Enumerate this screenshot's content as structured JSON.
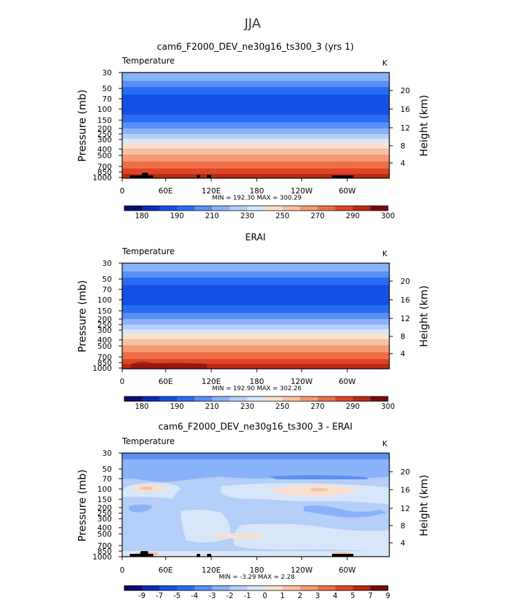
{
  "page": {
    "title": "JJA"
  },
  "shared": {
    "variable": "Temperature",
    "units": "K",
    "left_axis_label": "Pressure (mb)",
    "right_axis_label": "Height (km)",
    "pressure_ticks": [
      "30",
      "50",
      "70",
      "100",
      "150",
      "200",
      "250",
      "300",
      "400",
      "500",
      "700",
      "850",
      "1000"
    ],
    "height_ticks": [
      "20",
      "16",
      "12",
      "8",
      "4"
    ],
    "lon_ticks": [
      "0",
      "60E",
      "120E",
      "180",
      "120W",
      "60W"
    ]
  },
  "panels": [
    {
      "title": "cam6_F2000_DEV_ne30g16_ts300_3 (yrs 1)",
      "minmax": "MIN = 192.30   MAX = 300.29",
      "colorbar_labels": [
        "180",
        "190",
        "210",
        "230",
        "250",
        "270",
        "290",
        "300"
      ],
      "colorbar_colors": [
        "#0a0a6e",
        "#0c2ab4",
        "#1450e6",
        "#2a6cf2",
        "#5a8ff6",
        "#8ab2f8",
        "#b4cff8",
        "#d8e6fa",
        "#f8e0d0",
        "#f8c0a4",
        "#f49a76",
        "#ee6e48",
        "#e04426",
        "#b82a14",
        "#7a0c0c"
      ]
    },
    {
      "title": "ERAI",
      "minmax": "MIN = 192.90   MAX = 302.26",
      "colorbar_labels": [
        "180",
        "190",
        "210",
        "230",
        "250",
        "270",
        "290",
        "300"
      ],
      "colorbar_colors": [
        "#0a0a6e",
        "#0c2ab4",
        "#1450e6",
        "#2a6cf2",
        "#5a8ff6",
        "#8ab2f8",
        "#b4cff8",
        "#d8e6fa",
        "#f8e0d0",
        "#f8c0a4",
        "#f49a76",
        "#ee6e48",
        "#e04426",
        "#b82a14",
        "#7a0c0c"
      ]
    },
    {
      "title": "cam6_F2000_DEV_ne30g16_ts300_3 - ERAI",
      "minmax": "MIN =  -3.29   MAX =   2.28",
      "colorbar_labels": [
        "-9",
        "-7",
        "-5",
        "-4",
        "-3",
        "-2",
        "-1",
        "0",
        "1",
        "2",
        "3",
        "4",
        "5",
        "7",
        "9"
      ],
      "colorbar_colors": [
        "#0a0a6e",
        "#0c2ab4",
        "#1450e6",
        "#2a6cf2",
        "#5a8ff6",
        "#8ab2f8",
        "#b4cff8",
        "#d8e6fa",
        "#f8e0d0",
        "#f8c0a4",
        "#f49a76",
        "#ee6e48",
        "#e04426",
        "#b82a14",
        "#7a0c0c"
      ]
    }
  ],
  "chart_data": [
    {
      "type": "heatmap",
      "title": "cam6_F2000_DEV_ne30g16_ts300_3 (yrs 1)",
      "xlabel": "",
      "ylabel": "Pressure (mb)",
      "y2label": "Height (km)",
      "x_ticks": [
        "0",
        "60E",
        "120E",
        "180",
        "120W",
        "60W"
      ],
      "y_ticks_mb": [
        30,
        50,
        70,
        100,
        150,
        200,
        250,
        300,
        400,
        500,
        700,
        850,
        1000
      ],
      "levels_mb": [
        30,
        50,
        70,
        100,
        150,
        200,
        250,
        300,
        400,
        500,
        700,
        850,
        1000
      ],
      "zonal_mean_temperature_K": [
        211,
        206,
        202,
        197,
        204,
        215,
        226,
        234,
        248,
        259,
        274,
        282,
        290
      ],
      "min": 192.3,
      "max": 300.29,
      "units": "K"
    },
    {
      "type": "heatmap",
      "title": "ERAI",
      "xlabel": "",
      "ylabel": "Pressure (mb)",
      "y2label": "Height (km)",
      "x_ticks": [
        "0",
        "60E",
        "120E",
        "180",
        "120W",
        "60W"
      ],
      "y_ticks_mb": [
        30,
        50,
        70,
        100,
        150,
        200,
        250,
        300,
        400,
        500,
        700,
        850,
        1000
      ],
      "levels_mb": [
        30,
        50,
        70,
        100,
        150,
        200,
        250,
        300,
        400,
        500,
        700,
        850,
        1000
      ],
      "zonal_mean_temperature_K": [
        212,
        207,
        203,
        198,
        205,
        216,
        227,
        235,
        249,
        260,
        275,
        283,
        292
      ],
      "min": 192.9,
      "max": 302.26,
      "units": "K"
    },
    {
      "type": "heatmap",
      "title": "cam6_F2000_DEV_ne30g16_ts300_3 - ERAI",
      "xlabel": "",
      "ylabel": "Pressure (mb)",
      "y2label": "Height (km)",
      "x_ticks": [
        "0",
        "60E",
        "120E",
        "180",
        "120W",
        "60W"
      ],
      "y_ticks_mb": [
        30,
        50,
        70,
        100,
        150,
        200,
        250,
        300,
        400,
        500,
        700,
        850,
        1000
      ],
      "levels_mb": [
        30,
        50,
        70,
        100,
        150,
        200,
        250,
        300,
        400,
        500,
        700,
        850,
        1000
      ],
      "zonal_mean_difference_K": [
        -2.5,
        -1.5,
        -1.8,
        0.8,
        -1.2,
        -1.5,
        -1.0,
        -1.0,
        -0.5,
        -0.5,
        -0.6,
        -0.5,
        -0.5
      ],
      "min": -3.29,
      "max": 2.28,
      "units": "K"
    }
  ]
}
